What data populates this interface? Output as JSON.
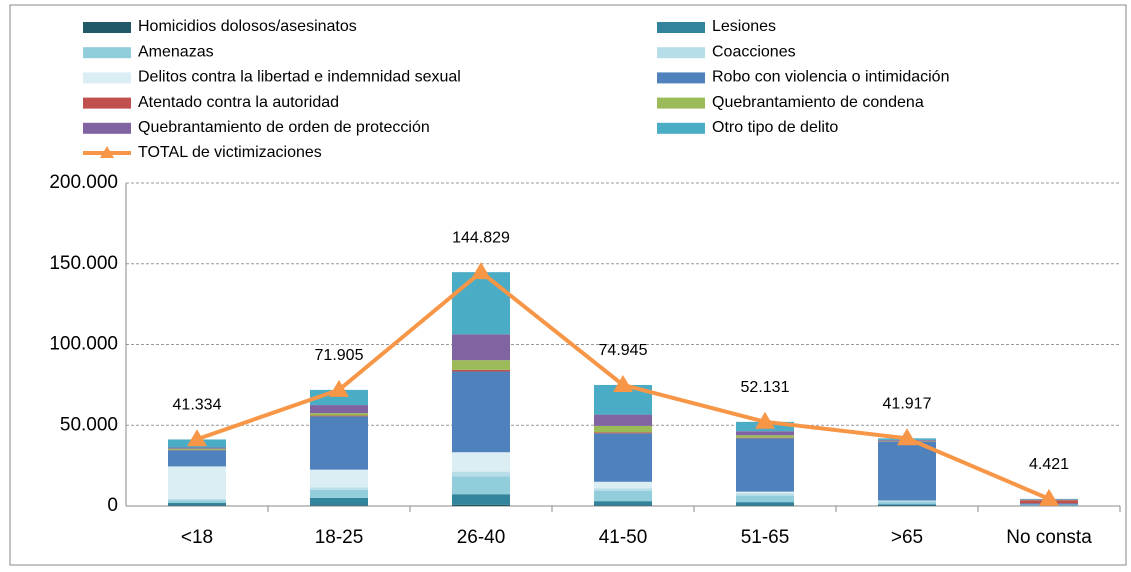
{
  "chart_data": {
    "type": "bar",
    "stacked": true,
    "categories": [
      "<18",
      "18-25",
      "26-40",
      "41-50",
      "51-65",
      ">65",
      "No consta"
    ],
    "series": [
      {
        "name": "Homicidios dolosos/asesinatos",
        "color": "#215968",
        "values": [
          500,
          500,
          800,
          500,
          400,
          300,
          100
        ]
      },
      {
        "name": "Lesiones",
        "color": "#31849b",
        "values": [
          1500,
          4500,
          6500,
          2500,
          2000,
          800,
          200
        ]
      },
      {
        "name": "Amenazas",
        "color": "#92cddc",
        "values": [
          1500,
          5000,
          11000,
          6500,
          4000,
          1500,
          300
        ]
      },
      {
        "name": "Coacciones",
        "color": "#b7dee8",
        "values": [
          1000,
          1500,
          3000,
          1500,
          1500,
          500,
          100
        ]
      },
      {
        "name": "Delitos contra la libertad e indemnidad sexual",
        "color": "#daeef3",
        "values": [
          20000,
          11000,
          12000,
          4000,
          1000,
          300,
          100
        ]
      },
      {
        "name": "Robo con violencia o intimidación",
        "color": "#4f81bd",
        "values": [
          10000,
          33000,
          50000,
          30000,
          33000,
          36500,
          800
        ]
      },
      {
        "name": "Atentado contra la autoridad",
        "color": "#c0504d",
        "values": [
          200,
          500,
          1000,
          600,
          400,
          200,
          2000
        ]
      },
      {
        "name": "Quebrantamiento de condena",
        "color": "#9bbb59",
        "values": [
          800,
          1500,
          6000,
          4000,
          1500,
          300,
          200
        ]
      },
      {
        "name": "Quebrantamiento de orden de protección",
        "color": "#8064a2",
        "values": [
          700,
          5000,
          16000,
          7000,
          2500,
          500,
          200
        ]
      },
      {
        "name": "Otro tipo de delito",
        "color": "#4bacc6",
        "values": [
          5000,
          9400,
          38500,
          18345,
          5800,
          1000,
          400
        ]
      },
      {
        "name": "TOTAL de victimizaciones",
        "color": "#f79646",
        "type": "line",
        "values": [
          41334,
          71905,
          144829,
          74945,
          52131,
          41917,
          4421
        ],
        "value_labels": [
          "41.334",
          "71.905",
          "144.829",
          "74.945",
          "52.131",
          "41.917",
          "4.421"
        ]
      }
    ],
    "ylim": [
      0,
      200000
    ],
    "yticks": [
      0,
      {
        "value": 50000,
        "label": "50.000"
      },
      {
        "value": 100000,
        "label": "100.000"
      },
      {
        "value": 150000,
        "label": "150.000"
      },
      {
        "value": 200000,
        "label": "200.000"
      }
    ],
    "grid": true,
    "legend": "top"
  }
}
